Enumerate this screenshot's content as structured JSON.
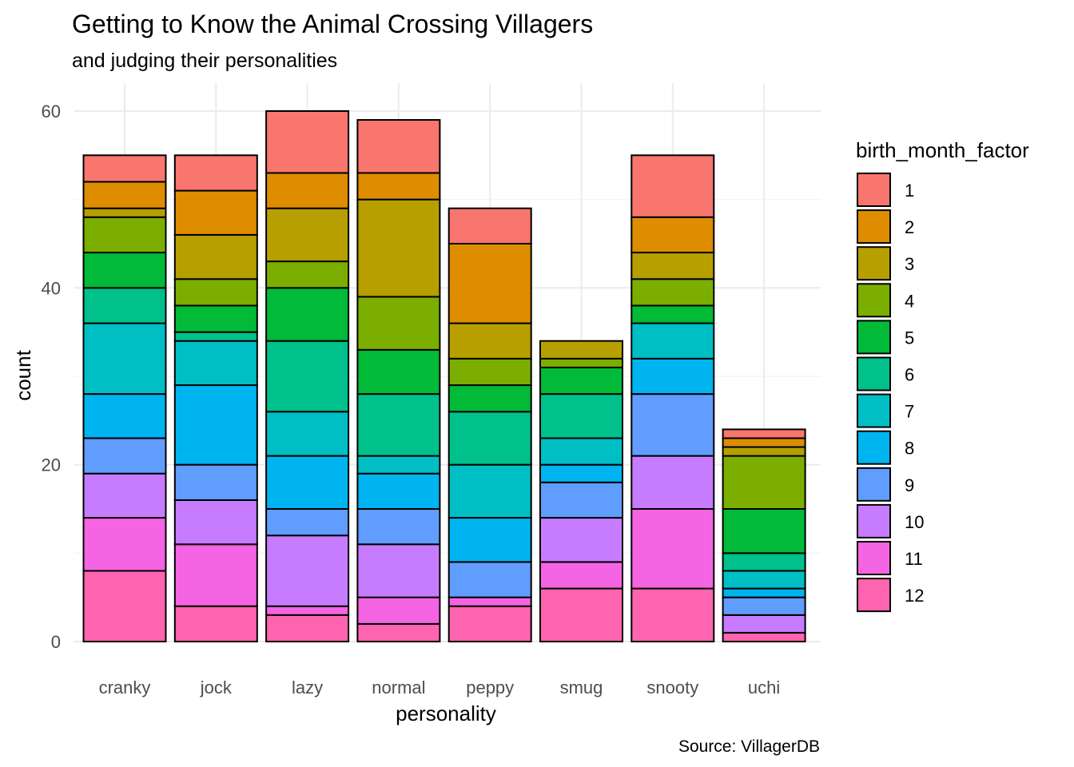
{
  "chart_data": {
    "type": "bar",
    "stacked": true,
    "title": "Getting to Know the Animal Crossing Villagers",
    "subtitle": "and judging their personalities",
    "xlabel": "personality",
    "ylabel": "count",
    "caption": "Source: VillagerDB",
    "categories": [
      "cranky",
      "jock",
      "lazy",
      "normal",
      "peppy",
      "smug",
      "snooty",
      "uchi"
    ],
    "ylim": [
      0,
      60
    ],
    "yticks": [
      0,
      20,
      40,
      60
    ],
    "grid": true,
    "legend": {
      "title": "birth_month_factor",
      "position": "right"
    },
    "series": [
      {
        "name": "1",
        "color": "#F8766D",
        "values": [
          3,
          4,
          7,
          6,
          4,
          0,
          7,
          1
        ]
      },
      {
        "name": "2",
        "color": "#DE8C00",
        "values": [
          3,
          5,
          4,
          3,
          9,
          0,
          4,
          1
        ]
      },
      {
        "name": "3",
        "color": "#B79F00",
        "values": [
          1,
          5,
          6,
          11,
          4,
          2,
          3,
          1
        ]
      },
      {
        "name": "4",
        "color": "#7CAE00",
        "values": [
          4,
          3,
          3,
          6,
          3,
          1,
          3,
          6
        ]
      },
      {
        "name": "5",
        "color": "#00BA38",
        "values": [
          4,
          3,
          6,
          5,
          3,
          3,
          2,
          5
        ]
      },
      {
        "name": "6",
        "color": "#00C08B",
        "values": [
          4,
          1,
          8,
          7,
          6,
          5,
          0,
          2
        ]
      },
      {
        "name": "7",
        "color": "#00BFC4",
        "values": [
          8,
          5,
          5,
          2,
          6,
          3,
          4,
          2
        ]
      },
      {
        "name": "8",
        "color": "#00B4F0",
        "values": [
          5,
          9,
          6,
          4,
          5,
          2,
          4,
          1
        ]
      },
      {
        "name": "9",
        "color": "#619CFF",
        "values": [
          4,
          4,
          3,
          4,
          4,
          4,
          7,
          2
        ]
      },
      {
        "name": "10",
        "color": "#C77CFF",
        "values": [
          5,
          5,
          8,
          6,
          0,
          5,
          6,
          2
        ]
      },
      {
        "name": "11",
        "color": "#F564E3",
        "values": [
          6,
          7,
          1,
          3,
          1,
          3,
          9,
          0
        ]
      },
      {
        "name": "12",
        "color": "#FF64B0",
        "values": [
          8,
          4,
          3,
          2,
          4,
          6,
          6,
          1
        ]
      }
    ]
  }
}
